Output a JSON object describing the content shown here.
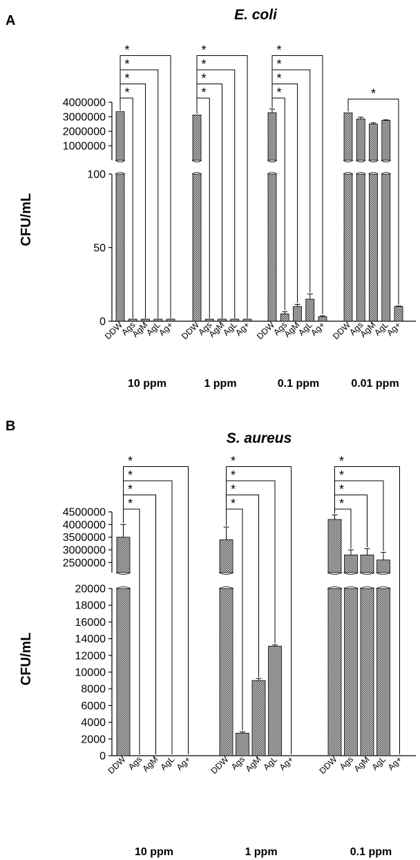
{
  "chart_data": [
    {
      "panel": "A",
      "type": "bar",
      "title": "E. coli",
      "ylabel": "CFU/mL",
      "y_scale": "broken",
      "lower_segment": {
        "ylim": [
          0,
          100
        ],
        "ticks": [
          "0",
          "50",
          "100"
        ]
      },
      "upper_segment": {
        "ylim": [
          0,
          4000000
        ],
        "ticks": [
          "1000000",
          "2000000",
          "3000000",
          "4000000"
        ]
      },
      "groups": [
        {
          "label": "10 ppm",
          "categories": [
            "DDW",
            "Ags",
            "AgM",
            "AgL",
            "Ag+"
          ],
          "values": [
            3350000,
            1,
            1,
            1,
            1
          ],
          "errors": [
            0,
            0,
            0,
            0,
            0
          ]
        },
        {
          "label": "1 ppm",
          "categories": [
            "DDW",
            "Ags",
            "AgM",
            "AgL",
            "Ag+"
          ],
          "values": [
            3120000,
            1,
            1,
            1,
            1
          ],
          "errors": [
            0,
            0,
            0,
            0,
            0
          ]
        },
        {
          "label": "0.1 ppm",
          "categories": [
            "DDW",
            "Ags",
            "AgM",
            "AgL",
            "Ag+"
          ],
          "values": [
            3280000,
            5,
            10,
            15,
            3
          ],
          "errors": [
            250000,
            1.5,
            1.5,
            3.5,
            0.7
          ]
        },
        {
          "label": "0.01 ppm",
          "categories": [
            "DDW",
            "Ags",
            "AgM",
            "AgL",
            "Ag+"
          ],
          "values": [
            3270000,
            2850000,
            2500000,
            2750000,
            10
          ],
          "errors": [
            0,
            120000,
            80000,
            40000,
            0.3
          ]
        }
      ],
      "significance": [
        {
          "group": 0,
          "from": "DDW",
          "to": "Ags",
          "label": "*"
        },
        {
          "group": 0,
          "from": "DDW",
          "to": "AgM",
          "label": "*"
        },
        {
          "group": 0,
          "from": "DDW",
          "to": "AgL",
          "label": "*"
        },
        {
          "group": 0,
          "from": "DDW",
          "to": "Ag+",
          "label": "*"
        },
        {
          "group": 1,
          "from": "DDW",
          "to": "Ags",
          "label": "*"
        },
        {
          "group": 1,
          "from": "DDW",
          "to": "AgM",
          "label": "*"
        },
        {
          "group": 1,
          "from": "DDW",
          "to": "AgL",
          "label": "*"
        },
        {
          "group": 1,
          "from": "DDW",
          "to": "Ag+",
          "label": "*"
        },
        {
          "group": 2,
          "from": "DDW",
          "to": "Ags",
          "label": "*"
        },
        {
          "group": 2,
          "from": "DDW",
          "to": "AgM",
          "label": "*"
        },
        {
          "group": 2,
          "from": "DDW",
          "to": "AgL",
          "label": "*"
        },
        {
          "group": 2,
          "from": "DDW",
          "to": "Ag+",
          "label": "*"
        },
        {
          "group": 3,
          "from": "DDW",
          "to": "Ag+",
          "label": "*"
        }
      ]
    },
    {
      "panel": "B",
      "type": "bar",
      "title": "S. aureus",
      "ylabel": "CFU/mL",
      "y_scale": "broken",
      "lower_segment": {
        "ylim": [
          0,
          20000
        ],
        "ticks": [
          "0",
          "2000",
          "4000",
          "6000",
          "8000",
          "10000",
          "12000",
          "14000",
          "16000",
          "18000",
          "20000"
        ]
      },
      "upper_segment": {
        "ylim": [
          2100000,
          4500000
        ],
        "ticks": [
          "2500000",
          "3000000",
          "3500000",
          "4000000",
          "4500000"
        ]
      },
      "groups": [
        {
          "label": "10 ppm",
          "categories": [
            "DDW",
            "Ags",
            "AgM",
            "AgL",
            "Ag+"
          ],
          "values": [
            3500000,
            0,
            0,
            0,
            0
          ],
          "errors": [
            500000,
            0,
            0,
            0,
            0
          ]
        },
        {
          "label": "1 ppm",
          "categories": [
            "DDW",
            "Ags",
            "AgM",
            "AgL",
            "Ag+"
          ],
          "values": [
            3400000,
            2700,
            9000,
            13100,
            0
          ],
          "errors": [
            500000,
            150,
            250,
            150,
            0
          ]
        },
        {
          "label": "0.1 ppm",
          "categories": [
            "DDW",
            "Ags",
            "AgM",
            "AgL",
            "Ag+"
          ],
          "values": [
            4200000,
            2800000,
            2800000,
            2600000,
            0
          ],
          "errors": [
            180000,
            200000,
            250000,
            300000,
            0
          ]
        }
      ],
      "significance": [
        {
          "group": 0,
          "from": "DDW",
          "to": "Ags",
          "label": "*"
        },
        {
          "group": 0,
          "from": "DDW",
          "to": "AgM",
          "label": "*"
        },
        {
          "group": 0,
          "from": "DDW",
          "to": "AgL",
          "label": "*"
        },
        {
          "group": 0,
          "from": "DDW",
          "to": "Ag+",
          "label": "*"
        },
        {
          "group": 1,
          "from": "DDW",
          "to": "Ags",
          "label": "*"
        },
        {
          "group": 1,
          "from": "DDW",
          "to": "AgM",
          "label": "*"
        },
        {
          "group": 1,
          "from": "DDW",
          "to": "AgL",
          "label": "*"
        },
        {
          "group": 1,
          "from": "DDW",
          "to": "Ag+",
          "label": "*"
        },
        {
          "group": 2,
          "from": "DDW",
          "to": "Ags",
          "label": "*"
        },
        {
          "group": 2,
          "from": "DDW",
          "to": "AgM",
          "label": "*"
        },
        {
          "group": 2,
          "from": "DDW",
          "to": "AgL",
          "label": "*"
        },
        {
          "group": 2,
          "from": "DDW",
          "to": "Ag+",
          "label": "*"
        }
      ]
    }
  ]
}
